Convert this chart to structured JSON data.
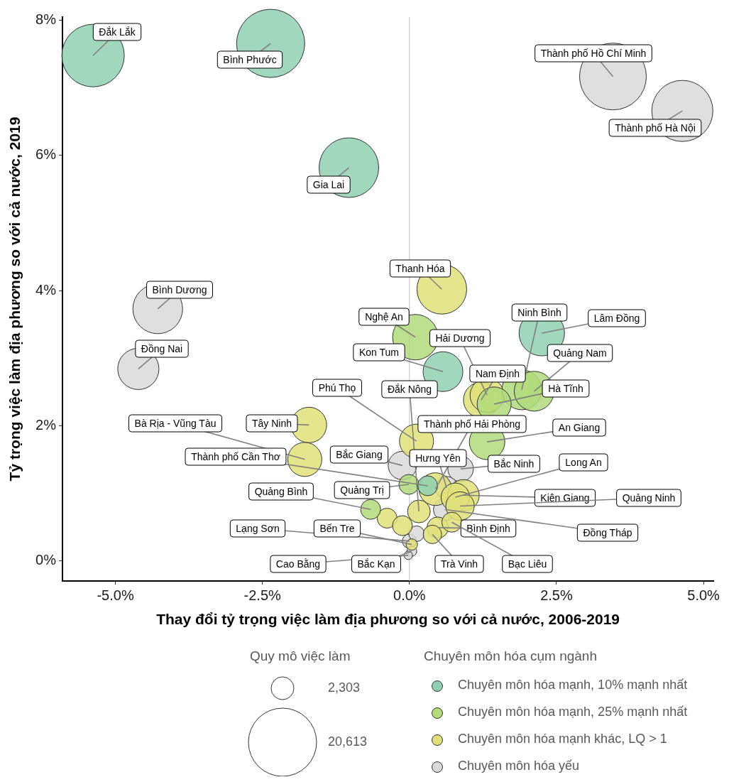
{
  "chart_data": {
    "type": "bubble",
    "xlabel": "Thay đổi tỷ trọng việc làm địa phương so với cả nước, 2006-2019",
    "ylabel": "Tỷ trọng việc làm địa phương so với cả nước, 2019",
    "legend_title": "Chuyên môn hóa cụm ngành",
    "legend": "bottom",
    "grid": false,
    "marker": "circle",
    "xlim": [
      -5.9,
      5.17
    ],
    "ylim": [
      -0.3,
      8.05
    ],
    "xticks": [
      {
        "value": -5,
        "label": "-5.0%"
      },
      {
        "value": -2.5,
        "label": "-2.5%"
      },
      {
        "value": 0,
        "label": "0.0%"
      },
      {
        "value": 2.5,
        "label": "2.5%"
      },
      {
        "value": 5,
        "label": "5.0%"
      }
    ],
    "yticks": [
      {
        "value": 0,
        "label": "0%"
      },
      {
        "value": 2,
        "label": "2%"
      },
      {
        "value": 4,
        "label": "4%"
      },
      {
        "value": 6,
        "label": "6%"
      },
      {
        "value": 8,
        "label": "8%"
      }
    ],
    "size_legend": [
      {
        "value": 2303,
        "label": "2,303"
      },
      {
        "value": 20613,
        "label": "20,613"
      }
    ],
    "ref_lines": [
      {
        "axis": "x",
        "value": 0,
        "color": "#bfbfbf"
      }
    ],
    "series": [
      {
        "name": "Chuyên môn hóa mạnh, 10% mạnh nhất",
        "color": "#8fd0b1",
        "x": [
          -5.38,
          -2.36,
          -1.03,
          0.57,
          2.25,
          0.31
        ],
        "values": [
          7.48,
          7.66,
          5.82,
          2.8,
          3.37,
          1.11
        ],
        "sizes": [
          17350,
          20613,
          15800,
          7030,
          9180,
          1760
        ]
      },
      {
        "name": "Chuyên môn hóa mạnh, 25% mạnh nhất",
        "color": "#b2db7c",
        "x": [
          0.1,
          1.91,
          2.12,
          1.44,
          1.32,
          -0.66,
          -0.01
        ],
        "values": [
          3.31,
          2.53,
          2.51,
          2.32,
          1.76,
          0.76,
          1.13
        ],
        "sizes": [
          9180,
          7030,
          7030,
          5160,
          5600,
          1760,
          1760
        ]
      },
      {
        "name": "Chuyên môn hóa mạnh khác, LQ > 1",
        "color": "#e0e07a",
        "x": [
          0.55,
          -1.71,
          -1.78,
          0.12,
          1.22,
          1.32,
          0.44,
          0.92,
          0.78,
          0.86,
          0.16,
          -0.38,
          -0.12,
          0.48,
          0.39,
          0.04,
          0.72
        ],
        "values": [
          4.02,
          2.01,
          1.5,
          1.77,
          2.38,
          2.45,
          1.06,
          0.97,
          0.94,
          0.81,
          0.73,
          0.63,
          0.52,
          0.49,
          0.39,
          0.24,
          0.57
        ],
        "sizes": [
          10980,
          5600,
          5160,
          5160,
          5600,
          5160,
          4740,
          4340,
          3585,
          3585,
          2295,
          1760,
          1760,
          2020,
          1515,
          575,
          1760
        ]
      },
      {
        "name": "Chuyên môn hóa yếu",
        "color": "#d9d9d9",
        "x": [
          3.46,
          4.64,
          -4.28,
          -4.61,
          -0.12,
          0.87,
          0.63,
          0.6,
          0.0,
          0.04,
          -0.02,
          0.12
        ],
        "values": [
          7.17,
          6.66,
          3.73,
          2.84,
          1.41,
          1.36,
          1.08,
          0.76,
          0.29,
          0.14,
          0.08,
          0.4
        ],
        "sizes": [
          19800,
          16575,
          10980,
          7540,
          3585,
          2900,
          2295,
          2295,
          900,
          440,
          320,
          1085
        ]
      }
    ],
    "annotations": [
      "Quy mô việc làm",
      {
        "text": "Đắk Lắk",
        "x": -5.38,
        "y": 7.48
      },
      {
        "text": "Bình Phước",
        "x": -2.36,
        "y": 7.66
      },
      {
        "text": "Thành phố Hồ Chí Minh",
        "x": 3.46,
        "y": 7.17
      },
      {
        "text": "Thành phố Hà Nội",
        "x": 4.64,
        "y": 6.66
      },
      {
        "text": "Gia Lai",
        "x": -1.03,
        "y": 5.82
      },
      {
        "text": "Thanh Hóa",
        "x": 0.55,
        "y": 4.02
      },
      {
        "text": "Bình Dương",
        "x": -4.28,
        "y": 3.73
      },
      {
        "text": "Nghệ An",
        "x": 0.1,
        "y": 3.31
      },
      {
        "text": "Ninh Bình",
        "x": 1.91,
        "y": 2.53
      },
      {
        "text": "Lâm Đồng",
        "x": 2.25,
        "y": 3.37
      },
      {
        "text": "Hải Dương",
        "x": 1.32,
        "y": 2.45
      },
      {
        "text": "Kon Tum",
        "x": 0.57,
        "y": 2.8
      },
      {
        "text": "Quảng Nam",
        "x": 2.12,
        "y": 2.51
      },
      {
        "text": "Đồng Nai",
        "x": -4.61,
        "y": 2.84
      },
      {
        "text": "Nam Định",
        "x": 1.22,
        "y": 2.38
      },
      {
        "text": "Phú Thọ",
        "x": 0.12,
        "y": 1.77
      },
      {
        "text": "Đắk Nông",
        "x": 0.16,
        "y": 0.73
      },
      {
        "text": "Hà Tĩnh",
        "x": 1.44,
        "y": 2.32
      },
      {
        "text": "Thành phố Hải Phòng",
        "x": 0.44,
        "y": 1.06
      },
      {
        "text": "An Giang",
        "x": 1.32,
        "y": 1.76
      },
      {
        "text": "Bà Rịa - Vũng Tàu",
        "x": -1.78,
        "y": 1.5
      },
      {
        "text": "Tây Ninh",
        "x": -1.71,
        "y": 2.01
      },
      {
        "text": "Thành phố Cần Thơ",
        "x": 0.31,
        "y": 1.11
      },
      {
        "text": "Bắc Giang",
        "x": -0.12,
        "y": 1.41
      },
      {
        "text": "Hưng Yên",
        "x": 0.63,
        "y": 1.08
      },
      {
        "text": "Bắc Ninh",
        "x": 0.87,
        "y": 1.36
      },
      {
        "text": "Long An",
        "x": 0.78,
        "y": 0.94
      },
      {
        "text": "Quảng Trị",
        "x": -0.01,
        "y": 1.13
      },
      {
        "text": "Quảng Bình",
        "x": -0.66,
        "y": 0.76
      },
      {
        "text": "Kiên Giang",
        "x": 0.92,
        "y": 0.97
      },
      {
        "text": "Quảng Ninh",
        "x": 0.86,
        "y": 0.81
      },
      {
        "text": "Lạng Sơn",
        "x": 0.0,
        "y": 0.29
      },
      {
        "text": "Bến Tre",
        "x": 0.04,
        "y": 0.24
      },
      {
        "text": "Bình Định",
        "x": 0.48,
        "y": 0.49
      },
      {
        "text": "Đồng Tháp",
        "x": 0.6,
        "y": 0.76
      },
      {
        "text": "Cao Bằng",
        "x": -0.02,
        "y": 0.08
      },
      {
        "text": "Bắc Kạn",
        "x": 0.04,
        "y": 0.14
      },
      {
        "text": "Trà Vinh",
        "x": 0.39,
        "y": 0.39
      },
      {
        "text": "Bạc Liêu",
        "x": 0.72,
        "y": 0.57
      }
    ]
  }
}
